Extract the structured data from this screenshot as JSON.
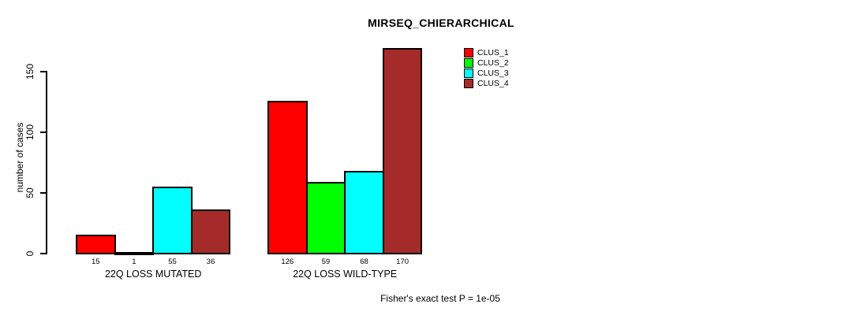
{
  "title": "MIRSEQ_CHIERARCHICAL",
  "footnote": "Fisher's exact test P = 1e-05",
  "colors": {
    "clus_1": "#ff0000",
    "clus_2": "#00ff00",
    "clus_3": "#00ffff",
    "clus_4": "#a52a2a"
  },
  "chart_data": {
    "type": "bar",
    "title": "MIRSEQ_CHIERARCHICAL",
    "xlabel": "",
    "ylabel": "number of cases",
    "ylim": [
      0,
      170
    ],
    "yticks": [
      0,
      50,
      100,
      150
    ],
    "grid": false,
    "legend_position": "top-right",
    "categories": [
      "22Q LOSS MUTATED",
      "22Q LOSS WILD-TYPE"
    ],
    "series": [
      {
        "name": "CLUS_1",
        "color": "#ff0000",
        "values": [
          15,
          126
        ]
      },
      {
        "name": "CLUS_2",
        "color": "#00ff00",
        "values": [
          1,
          59
        ]
      },
      {
        "name": "CLUS_3",
        "color": "#00ffff",
        "values": [
          55,
          68
        ]
      },
      {
        "name": "CLUS_4",
        "color": "#a52a2a",
        "values": [
          36,
          170
        ]
      }
    ],
    "bar_value_labels": {
      "22Q LOSS MUTATED": [
        15,
        1,
        55,
        36
      ],
      "22Q LOSS WILD-TYPE": [
        126,
        59,
        68,
        170
      ]
    },
    "annotation": "Fisher's exact test P = 1e-05"
  }
}
